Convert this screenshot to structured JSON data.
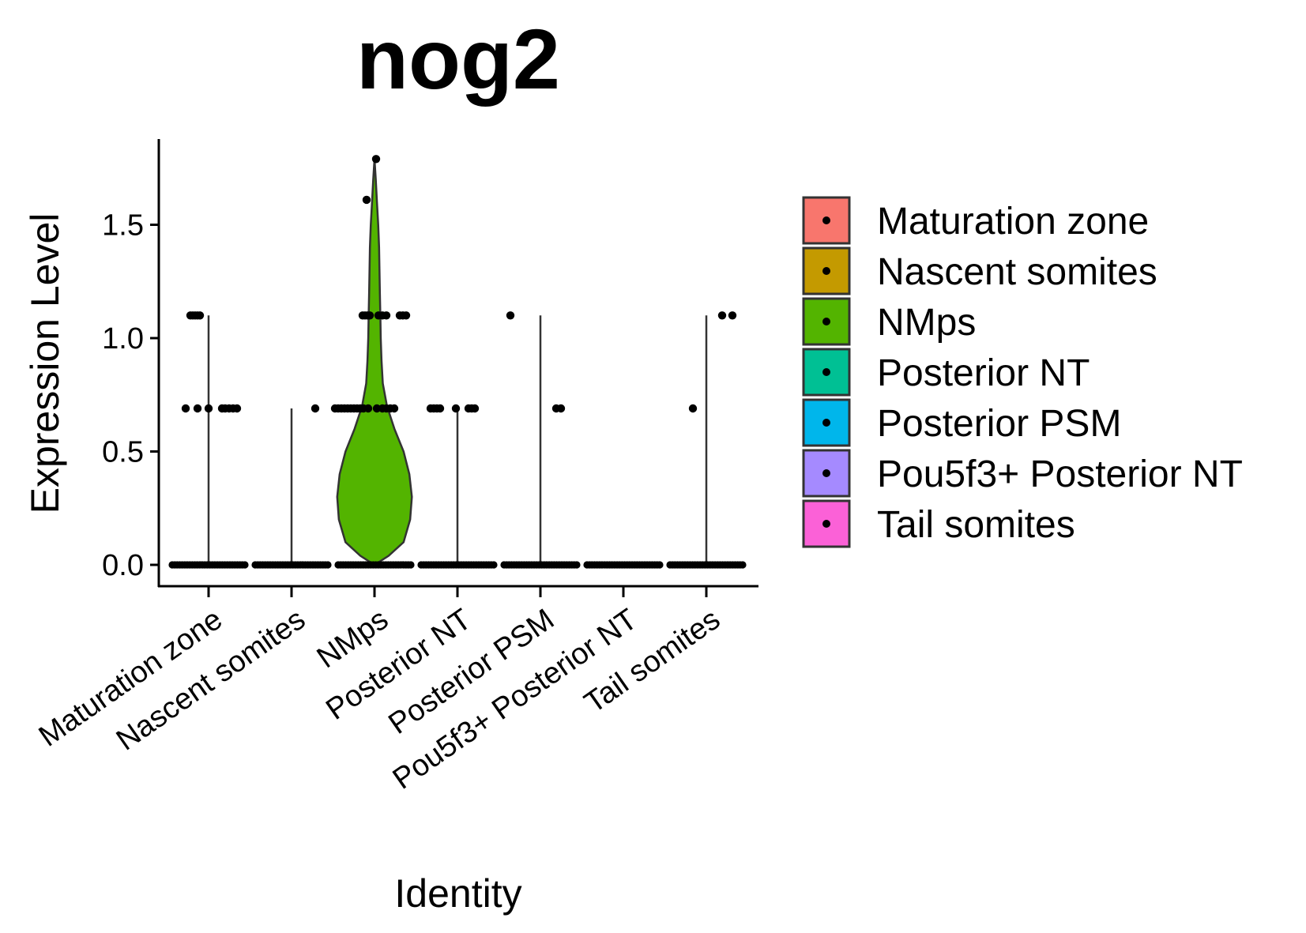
{
  "chart_data": {
    "type": "violin",
    "title": "nog2",
    "xlabel": "Identity",
    "ylabel": "Expression Level",
    "ylim": [
      -0.08,
      1.88
    ],
    "yticks": [
      0.0,
      0.5,
      1.0,
      1.5
    ],
    "ytick_labels": [
      "0.0",
      "0.5",
      "1.0",
      "1.5"
    ],
    "grid": false,
    "legend_position": "right",
    "categories": [
      "Maturation zone",
      "Nascent somites",
      "NMps",
      "Posterior NT",
      "Posterior PSM",
      "Pou5f3+ Posterior NT",
      "Tail somites"
    ],
    "colors": [
      "#F8766D",
      "#C49A00",
      "#53B400",
      "#00C094",
      "#00B6EB",
      "#A58AFF",
      "#FB61D7"
    ],
    "max_values": [
      1.1,
      0.69,
      1.79,
      0.69,
      1.1,
      0.0,
      1.1
    ],
    "points": [
      {
        "offsets": [
          -0.23,
          -0.2,
          -0.17,
          -0.14,
          -0.11
        ],
        "values": [
          1.1,
          1.1,
          1.1,
          1.1,
          1.1
        ]
      },
      {
        "offsets": [
          -0.29,
          -0.14,
          0.0,
          0.17,
          0.21,
          0.26,
          0.31,
          0.36
        ],
        "values": [
          0.69,
          0.69,
          0.69,
          0.69,
          0.69,
          0.69,
          0.69,
          0.69
        ]
      },
      {
        "offsets": [
          0.3
        ],
        "values": [
          0.69
        ]
      },
      {
        "offsets": [
          0.02,
          -0.1,
          -0.15,
          -0.12,
          -0.09,
          -0.06,
          0.05,
          0.1,
          0.15,
          0.32,
          0.36,
          0.4
        ],
        "values": [
          1.79,
          1.61,
          1.1,
          1.1,
          1.1,
          1.1,
          1.1,
          1.1,
          1.1,
          1.1,
          1.1,
          1.1
        ]
      },
      {
        "offsets": [
          -0.5,
          -0.46,
          -0.42,
          -0.38,
          -0.34,
          -0.3,
          -0.26,
          -0.22,
          -0.18,
          -0.14,
          -0.08,
          0.03,
          0.1,
          0.15,
          0.2,
          0.25
        ],
        "values": [
          0.69,
          0.69,
          0.69,
          0.69,
          0.69,
          0.69,
          0.69,
          0.69,
          0.69,
          0.69,
          0.69,
          0.69,
          0.69,
          0.69,
          0.69,
          0.69
        ]
      },
      {
        "offsets": [
          -0.34,
          -0.3,
          -0.26,
          -0.22,
          -0.02,
          0.14,
          0.18,
          0.22
        ],
        "values": [
          0.69,
          0.69,
          0.69,
          0.69,
          0.69,
          0.69,
          0.69,
          0.69
        ]
      },
      {
        "offsets": [
          -0.38,
          0.2,
          0.26
        ],
        "values": [
          1.1,
          0.69,
          0.69
        ]
      },
      {
        "offsets": [
          -0.17,
          0.2,
          0.33
        ],
        "values": [
          0.69,
          1.1,
          1.1
        ]
      }
    ],
    "point_groups": [
      0,
      0,
      1,
      2,
      2,
      3,
      4,
      6
    ],
    "nmps_density": [
      [
        0.0,
        0.0
      ],
      [
        0.04,
        0.17
      ],
      [
        0.1,
        0.35
      ],
      [
        0.2,
        0.43
      ],
      [
        0.3,
        0.45
      ],
      [
        0.4,
        0.42
      ],
      [
        0.5,
        0.35
      ],
      [
        0.6,
        0.24
      ],
      [
        0.7,
        0.15
      ],
      [
        0.8,
        0.1
      ],
      [
        0.9,
        0.085
      ],
      [
        1.0,
        0.075
      ],
      [
        1.1,
        0.07
      ],
      [
        1.2,
        0.065
      ],
      [
        1.3,
        0.06
      ],
      [
        1.4,
        0.055
      ],
      [
        1.5,
        0.045
      ],
      [
        1.6,
        0.03
      ],
      [
        1.7,
        0.015
      ],
      [
        1.79,
        0.0
      ]
    ]
  }
}
